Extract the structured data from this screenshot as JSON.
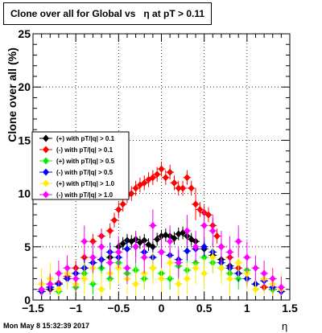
{
  "window": {
    "title_left": "Clone  over all for Global vs",
    "title_right": "η at pT > 0.11"
  },
  "footer": {
    "timestamp": "Mon May  8 15:32:39 2017"
  },
  "chart_data": {
    "type": "scatter",
    "title": "Clone  over all for Global vs  η at pT > 0.11",
    "xlabel": "η",
    "ylabel": "Clone  over all (%)",
    "xlim": [
      -1.5,
      1.5
    ],
    "ylim": [
      0,
      25
    ],
    "xticks": [
      -1.5,
      -1,
      -0.5,
      0,
      0.5,
      1,
      1.5
    ],
    "xtick_labels": [
      "−1.5",
      "−1",
      "−0.5",
      "0",
      "0.5",
      "1",
      "1.5"
    ],
    "yticks": [
      0,
      5,
      10,
      15,
      20,
      25
    ],
    "ytick_labels": [
      "0",
      "5",
      "10",
      "15",
      "20",
      "25"
    ],
    "grid": true,
    "legend_position": "left-middle",
    "series": [
      {
        "name": "(+) with pT/|q| > 0.1",
        "color": "#000000",
        "marker": "diamond",
        "x": [
          -1.4,
          -1.3,
          -1.2,
          -1.1,
          -1.0,
          -0.9,
          -0.8,
          -0.7,
          -0.6,
          -0.5,
          -0.45,
          -0.4,
          -0.35,
          -0.3,
          -0.25,
          -0.2,
          -0.15,
          -0.1,
          -0.05,
          0.0,
          0.05,
          0.1,
          0.15,
          0.2,
          0.25,
          0.3,
          0.35,
          0.4,
          0.5,
          0.6,
          0.7,
          0.8,
          0.9,
          1.0,
          1.1,
          1.2,
          1.3,
          1.4
        ],
        "y": [
          0.8,
          1.0,
          1.5,
          2.0,
          2.5,
          3.0,
          3.5,
          3.8,
          4.0,
          5.0,
          5.3,
          5.6,
          5.5,
          5.7,
          5.4,
          5.6,
          5.2,
          5.0,
          5.7,
          6.0,
          6.1,
          6.0,
          5.8,
          6.2,
          6.3,
          6.0,
          5.7,
          5.5,
          4.8,
          4.2,
          3.8,
          3.2,
          2.5,
          2.0,
          1.5,
          1.2,
          1.0,
          0.8
        ],
        "err": [
          0.4,
          0.4,
          0.5,
          0.5,
          0.6,
          0.6,
          0.6,
          0.6,
          0.6,
          0.6,
          0.6,
          0.6,
          0.6,
          0.6,
          0.6,
          0.6,
          0.6,
          0.6,
          0.6,
          0.6,
          0.6,
          0.6,
          0.6,
          0.6,
          0.6,
          0.6,
          0.6,
          0.6,
          0.6,
          0.6,
          0.6,
          0.6,
          0.5,
          0.5,
          0.5,
          0.4,
          0.4,
          0.4
        ]
      },
      {
        "name": "(-) with pT/|q| > 0.1",
        "color": "#ff0000",
        "marker": "diamond",
        "x": [
          -1.4,
          -1.3,
          -1.2,
          -1.1,
          -1.0,
          -0.9,
          -0.8,
          -0.7,
          -0.6,
          -0.55,
          -0.5,
          -0.45,
          -0.4,
          -0.35,
          -0.3,
          -0.25,
          -0.2,
          -0.15,
          -0.1,
          -0.05,
          0.0,
          0.05,
          0.1,
          0.15,
          0.2,
          0.25,
          0.3,
          0.35,
          0.4,
          0.45,
          0.5,
          0.55,
          0.6,
          0.65,
          0.7,
          0.8,
          0.9,
          1.0,
          1.1,
          1.2,
          1.3,
          1.4
        ],
        "y": [
          0.8,
          1.2,
          1.6,
          2.2,
          3.0,
          4.0,
          5.5,
          6.0,
          6.5,
          7.5,
          8.5,
          9.0,
          9.8,
          10.0,
          10.5,
          10.8,
          11.0,
          11.3,
          11.5,
          11.8,
          12.3,
          11.5,
          12.0,
          11.0,
          10.5,
          10.5,
          11.5,
          10.5,
          9.0,
          8.5,
          8.2,
          8.0,
          7.0,
          6.0,
          5.0,
          4.0,
          3.0,
          2.0,
          1.5,
          1.2,
          1.0,
          0.8
        ],
        "err": [
          0.4,
          0.5,
          0.6,
          0.6,
          0.7,
          0.7,
          0.7,
          0.7,
          0.7,
          0.7,
          0.7,
          0.7,
          0.7,
          0.7,
          0.7,
          0.7,
          0.7,
          0.7,
          0.7,
          0.7,
          0.7,
          0.7,
          0.7,
          0.7,
          0.7,
          0.7,
          0.7,
          0.7,
          1.5,
          0.7,
          0.7,
          0.7,
          0.7,
          0.7,
          0.7,
          0.7,
          0.7,
          0.6,
          0.6,
          0.5,
          0.5,
          0.4
        ]
      },
      {
        "name": "(+) with pT/|q| > 0.5",
        "color": "#00ee00",
        "marker": "diamond",
        "x": [
          -1.4,
          -1.3,
          -1.2,
          -1.1,
          -1.0,
          -0.9,
          -0.8,
          -0.7,
          -0.6,
          -0.5,
          -0.4,
          -0.3,
          -0.2,
          -0.1,
          0.0,
          0.1,
          0.2,
          0.3,
          0.4,
          0.5,
          0.6,
          0.7,
          0.8,
          0.9,
          1.0,
          1.1,
          1.2,
          1.3,
          1.4
        ],
        "y": [
          1.0,
          1.5,
          0.8,
          2.0,
          1.2,
          2.5,
          1.5,
          3.0,
          2.0,
          3.5,
          2.5,
          2.8,
          2.0,
          3.0,
          2.5,
          2.0,
          3.2,
          2.8,
          3.5,
          4.0,
          3.5,
          3.0,
          2.5,
          2.0,
          2.8,
          1.5,
          2.0,
          1.0,
          0.8
        ],
        "err": [
          0.8,
          0.9,
          0.8,
          0.9,
          0.9,
          1.0,
          1.0,
          1.0,
          1.0,
          1.0,
          1.0,
          1.0,
          1.0,
          1.0,
          1.0,
          1.0,
          1.0,
          1.0,
          1.0,
          1.0,
          1.0,
          1.0,
          1.0,
          1.0,
          1.0,
          0.9,
          0.9,
          0.8,
          0.8
        ]
      },
      {
        "name": "(-) with pT/|q| > 0.5",
        "color": "#0000ff",
        "marker": "diamond",
        "x": [
          -1.4,
          -1.3,
          -1.2,
          -1.1,
          -1.0,
          -0.9,
          -0.8,
          -0.7,
          -0.6,
          -0.5,
          -0.4,
          -0.3,
          -0.2,
          -0.1,
          0.0,
          0.1,
          0.2,
          0.3,
          0.4,
          0.5,
          0.6,
          0.7,
          0.8,
          0.9,
          1.0,
          1.1,
          1.2,
          1.3,
          1.4
        ],
        "y": [
          0.8,
          1.2,
          1.5,
          2.0,
          2.5,
          3.0,
          3.5,
          3.8,
          4.5,
          4.0,
          4.8,
          5.0,
          4.5,
          4.0,
          4.5,
          4.2,
          3.8,
          4.6,
          4.8,
          5.0,
          4.5,
          3.5,
          3.0,
          2.5,
          2.0,
          1.5,
          1.8,
          1.2,
          0.8
        ],
        "err": [
          0.6,
          0.7,
          0.7,
          0.8,
          0.8,
          0.9,
          0.9,
          0.9,
          0.9,
          0.9,
          0.9,
          0.9,
          0.9,
          0.9,
          0.9,
          0.9,
          0.9,
          0.9,
          0.9,
          0.9,
          0.9,
          0.9,
          0.9,
          0.8,
          0.8,
          0.7,
          0.7,
          0.6,
          0.6
        ]
      },
      {
        "name": "(+) with pT/|q| > 1.0",
        "color": "#ffee00",
        "marker": "diamond",
        "x": [
          -1.4,
          -1.3,
          -1.2,
          -1.1,
          -1.0,
          -0.9,
          -0.8,
          -0.7,
          -0.6,
          -0.5,
          -0.4,
          -0.3,
          -0.2,
          -0.1,
          0.0,
          0.1,
          0.2,
          0.3,
          0.4,
          0.5,
          0.6,
          0.7,
          0.8,
          0.9,
          1.0,
          1.1,
          1.2,
          1.3,
          1.4
        ],
        "y": [
          1.5,
          2.0,
          1.0,
          2.5,
          1.5,
          2.0,
          3.0,
          1.0,
          2.5,
          3.0,
          2.0,
          1.5,
          2.5,
          3.0,
          2.0,
          3.5,
          1.5,
          2.0,
          3.0,
          2.5,
          4.0,
          3.0,
          2.0,
          3.5,
          2.5,
          1.0,
          2.0,
          1.5,
          1.0
        ],
        "err": [
          1.5,
          1.5,
          1.5,
          1.5,
          1.5,
          1.5,
          1.5,
          1.5,
          1.5,
          1.5,
          1.5,
          1.5,
          1.5,
          1.5,
          1.5,
          1.5,
          1.5,
          1.5,
          1.5,
          1.5,
          1.5,
          1.5,
          1.5,
          1.5,
          1.5,
          1.5,
          1.5,
          1.5,
          1.5
        ]
      },
      {
        "name": "(-) with pT/|q| > 1.0",
        "color": "#ff00ff",
        "marker": "diamond",
        "x": [
          -1.4,
          -1.3,
          -1.2,
          -1.1,
          -1.0,
          -0.9,
          -0.8,
          -0.7,
          -0.6,
          -0.5,
          -0.4,
          -0.3,
          -0.2,
          -0.1,
          0.0,
          0.1,
          0.2,
          0.3,
          0.4,
          0.5,
          0.6,
          0.7,
          0.8,
          0.9,
          1.0,
          1.1,
          1.2,
          1.3,
          1.4
        ],
        "y": [
          1.0,
          1.5,
          2.5,
          3.0,
          2.0,
          5.5,
          4.0,
          5.0,
          3.5,
          4.5,
          3.0,
          5.0,
          4.0,
          7.0,
          4.5,
          5.5,
          3.5,
          6.5,
          5.0,
          7.0,
          6.5,
          5.0,
          4.5,
          5.5,
          4.0,
          3.0,
          2.5,
          2.0,
          1.2
        ],
        "err": [
          1.0,
          1.0,
          1.2,
          1.2,
          1.2,
          1.5,
          1.5,
          1.5,
          1.5,
          1.5,
          1.5,
          1.5,
          1.5,
          1.5,
          1.5,
          1.5,
          1.5,
          1.5,
          1.5,
          1.5,
          1.5,
          1.5,
          1.5,
          1.5,
          1.5,
          1.2,
          1.2,
          1.0,
          1.0
        ]
      }
    ]
  }
}
